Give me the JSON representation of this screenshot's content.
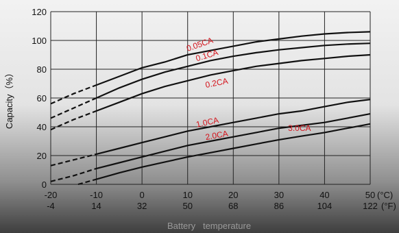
{
  "chart_data": {
    "type": "line",
    "ylabel": "Capacity（%）",
    "xlabel": "Battery   temperature",
    "xlim": [
      -20,
      50
    ],
    "ylim": [
      0,
      120
    ],
    "x_ticks": [
      {
        "c": -20,
        "f": "-4"
      },
      {
        "c": -10,
        "f": "14"
      },
      {
        "c": 0,
        "f": "32"
      },
      {
        "c": 10,
        "f": "50"
      },
      {
        "c": 20,
        "f": "68"
      },
      {
        "c": 30,
        "f": "86"
      },
      {
        "c": 40,
        "f": "104"
      },
      {
        "c": 50,
        "f": "122"
      }
    ],
    "x_unit_c": "(°C)",
    "x_unit_f": "(°F)",
    "y_ticks": [
      0,
      20,
      40,
      60,
      80,
      100,
      120
    ],
    "grid": true,
    "series": [
      {
        "name": "0.05CA",
        "x": [
          -20,
          -15,
          -10,
          -5,
          0,
          5,
          10,
          15,
          20,
          25,
          30,
          35,
          40,
          45,
          50
        ],
        "y": [
          56,
          63,
          69,
          75,
          81,
          85,
          90,
          93,
          96,
          99,
          101,
          103,
          104.5,
          105.5,
          106
        ]
      },
      {
        "name": "0.1CA",
        "x": [
          -20,
          -15,
          -10,
          -5,
          0,
          5,
          10,
          15,
          20,
          25,
          30,
          35,
          40,
          45,
          50
        ],
        "y": [
          46,
          53,
          60,
          67,
          73,
          78,
          82,
          86,
          89,
          91.5,
          93.5,
          95,
          96.5,
          97.5,
          98
        ]
      },
      {
        "name": "0.2CA",
        "x": [
          -20,
          -15,
          -10,
          -5,
          0,
          5,
          10,
          15,
          20,
          25,
          30,
          35,
          40,
          45,
          50
        ],
        "y": [
          38,
          45,
          51,
          57,
          63,
          68,
          72,
          76,
          79,
          82,
          84,
          86,
          87.5,
          89,
          90
        ]
      },
      {
        "name": "1.0CA",
        "x": [
          -20,
          -15,
          -10,
          -5,
          0,
          5,
          10,
          15,
          20,
          25,
          30,
          35,
          40,
          45,
          50
        ],
        "y": [
          13,
          17,
          21,
          25,
          29,
          33,
          37,
          40,
          43,
          46,
          49,
          51,
          54,
          57,
          59
        ]
      },
      {
        "name": "2.0CA",
        "x": [
          -20,
          -15,
          -10,
          -5,
          0,
          5,
          10,
          15,
          20,
          25,
          30,
          35,
          40,
          45,
          50
        ],
        "y": [
          2,
          6,
          11,
          15,
          19,
          23,
          27,
          30,
          33,
          36,
          39,
          41,
          43,
          46,
          49
        ]
      },
      {
        "name": "3.0CA",
        "x": [
          -14,
          -10,
          -5,
          0,
          5,
          10,
          15,
          20,
          25,
          30,
          35,
          40,
          45,
          50
        ],
        "y": [
          0,
          3.5,
          8,
          12,
          15.5,
          19,
          22,
          25,
          28,
          31,
          33.5,
          36,
          39,
          42
        ]
      }
    ]
  }
}
